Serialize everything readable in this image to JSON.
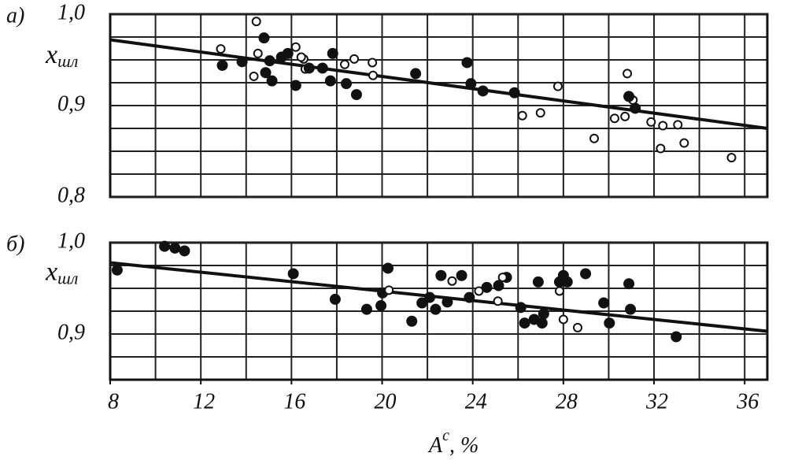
{
  "chart_data": [
    {
      "type": "scatter",
      "label": "а)",
      "ylabel": "x",
      "ylabel_sub": "шл",
      "xlim": [
        8,
        37
      ],
      "ylim": [
        0.8,
        1.0
      ],
      "yticks": [
        {
          "value": 1.0,
          "label": "1,0"
        },
        {
          "value": 0.9,
          "label": "0,9"
        },
        {
          "value": 0.8,
          "label": "0,8"
        }
      ],
      "xgrid": [
        10,
        12,
        14,
        16,
        18,
        20,
        22,
        24,
        26,
        28,
        30,
        32,
        34,
        36
      ],
      "ygrid": [
        0.825,
        0.85,
        0.875,
        0.9,
        0.925,
        0.95,
        0.975
      ],
      "series": [
        {
          "marker": "open",
          "color": "#111",
          "x": [
            12.88,
            14.45,
            14.34,
            14.52,
            16.19,
            16.54,
            16.61,
            16.43,
            18.35,
            18.77,
            19.57,
            19.6,
            27.76,
            26.19,
            26.99,
            29.36,
            30.82,
            31.07,
            30.26,
            30.72,
            31.87,
            32.39,
            33.05,
            32.29,
            33.33,
            35.42
          ],
          "values": [
            0.962,
            0.992,
            0.932,
            0.957,
            0.964,
            0.951,
            0.94,
            0.953,
            0.945,
            0.951,
            0.947,
            0.933,
            0.921,
            0.889,
            0.892,
            0.864,
            0.935,
            0.906,
            0.886,
            0.888,
            0.882,
            0.878,
            0.879,
            0.853,
            0.859,
            0.843
          ]
        },
        {
          "marker": "filled",
          "color": "#111",
          "x": [
            12.95,
            13.82,
            14.79,
            14.86,
            15.14,
            15.04,
            15.56,
            15.84,
            16.19,
            16.78,
            17.37,
            17.72,
            17.82,
            18.42,
            18.87,
            21.48,
            23.75,
            23.92,
            24.45,
            25.84,
            30.89,
            31.17
          ],
          "values": [
            0.944,
            0.948,
            0.974,
            0.936,
            0.927,
            0.949,
            0.953,
            0.957,
            0.922,
            0.941,
            0.941,
            0.927,
            0.957,
            0.924,
            0.912,
            0.935,
            0.947,
            0.924,
            0.916,
            0.914,
            0.91,
            0.897
          ]
        }
      ],
      "trend": {
        "x": [
          8,
          37
        ],
        "values": [
          0.972,
          0.875
        ]
      }
    },
    {
      "type": "scatter",
      "label": "б)",
      "ylabel": "x",
      "ylabel_sub": "шл",
      "xlabel": "A",
      "xlabel_sup": "c",
      "xlabel_unit": ", %",
      "xlim": [
        8,
        37
      ],
      "ylim": [
        0.85,
        1.0
      ],
      "xticks": [
        8,
        12,
        16,
        20,
        24,
        28,
        32,
        36
      ],
      "yticks": [
        {
          "value": 1.0,
          "label": "1,0"
        },
        {
          "value": 0.9,
          "label": "0,9"
        }
      ],
      "xgrid": [
        10,
        12,
        14,
        16,
        18,
        20,
        22,
        24,
        26,
        28,
        30,
        32,
        34,
        36
      ],
      "ygrid": [
        0.875,
        0.9,
        0.925,
        0.95,
        0.975
      ],
      "series": [
        {
          "marker": "filled",
          "color": "#111",
          "x": [
            8.31,
            10.4,
            10.86,
            11.28,
            16.08,
            17.93,
            19.32,
            19.95,
            20.26,
            20.02,
            21.31,
            21.76,
            22.1,
            22.36,
            22.6,
            22.88,
            23.51,
            23.85,
            24.62,
            25.14,
            25.49,
            26.12,
            26.29,
            26.71,
            26.89,
            27.06,
            27.13,
            27.83,
            28.0,
            28.17,
            28.98,
            29.78,
            30.03,
            30.89,
            30.96,
            32.98
          ],
          "values": [
            0.97,
            0.996,
            0.994,
            0.991,
            0.966,
            0.938,
            0.927,
            0.931,
            0.972,
            0.945,
            0.914,
            0.934,
            0.94,
            0.927,
            0.964,
            0.935,
            0.964,
            0.94,
            0.951,
            0.953,
            0.962,
            0.929,
            0.912,
            0.916,
            0.957,
            0.912,
            0.922,
            0.957,
            0.964,
            0.957,
            0.966,
            0.934,
            0.912,
            0.955,
            0.927,
            0.897
          ]
        },
        {
          "marker": "open",
          "color": "#111",
          "x": [
            20.3,
            23.09,
            24.27,
            25.11,
            25.32,
            27.83,
            28.0,
            28.63
          ],
          "values": [
            0.948,
            0.958,
            0.947,
            0.936,
            0.962,
            0.947,
            0.916,
            0.907
          ]
        }
      ],
      "trend": {
        "x": [
          8,
          37
        ],
        "values": [
          0.978,
          0.903
        ]
      }
    }
  ]
}
